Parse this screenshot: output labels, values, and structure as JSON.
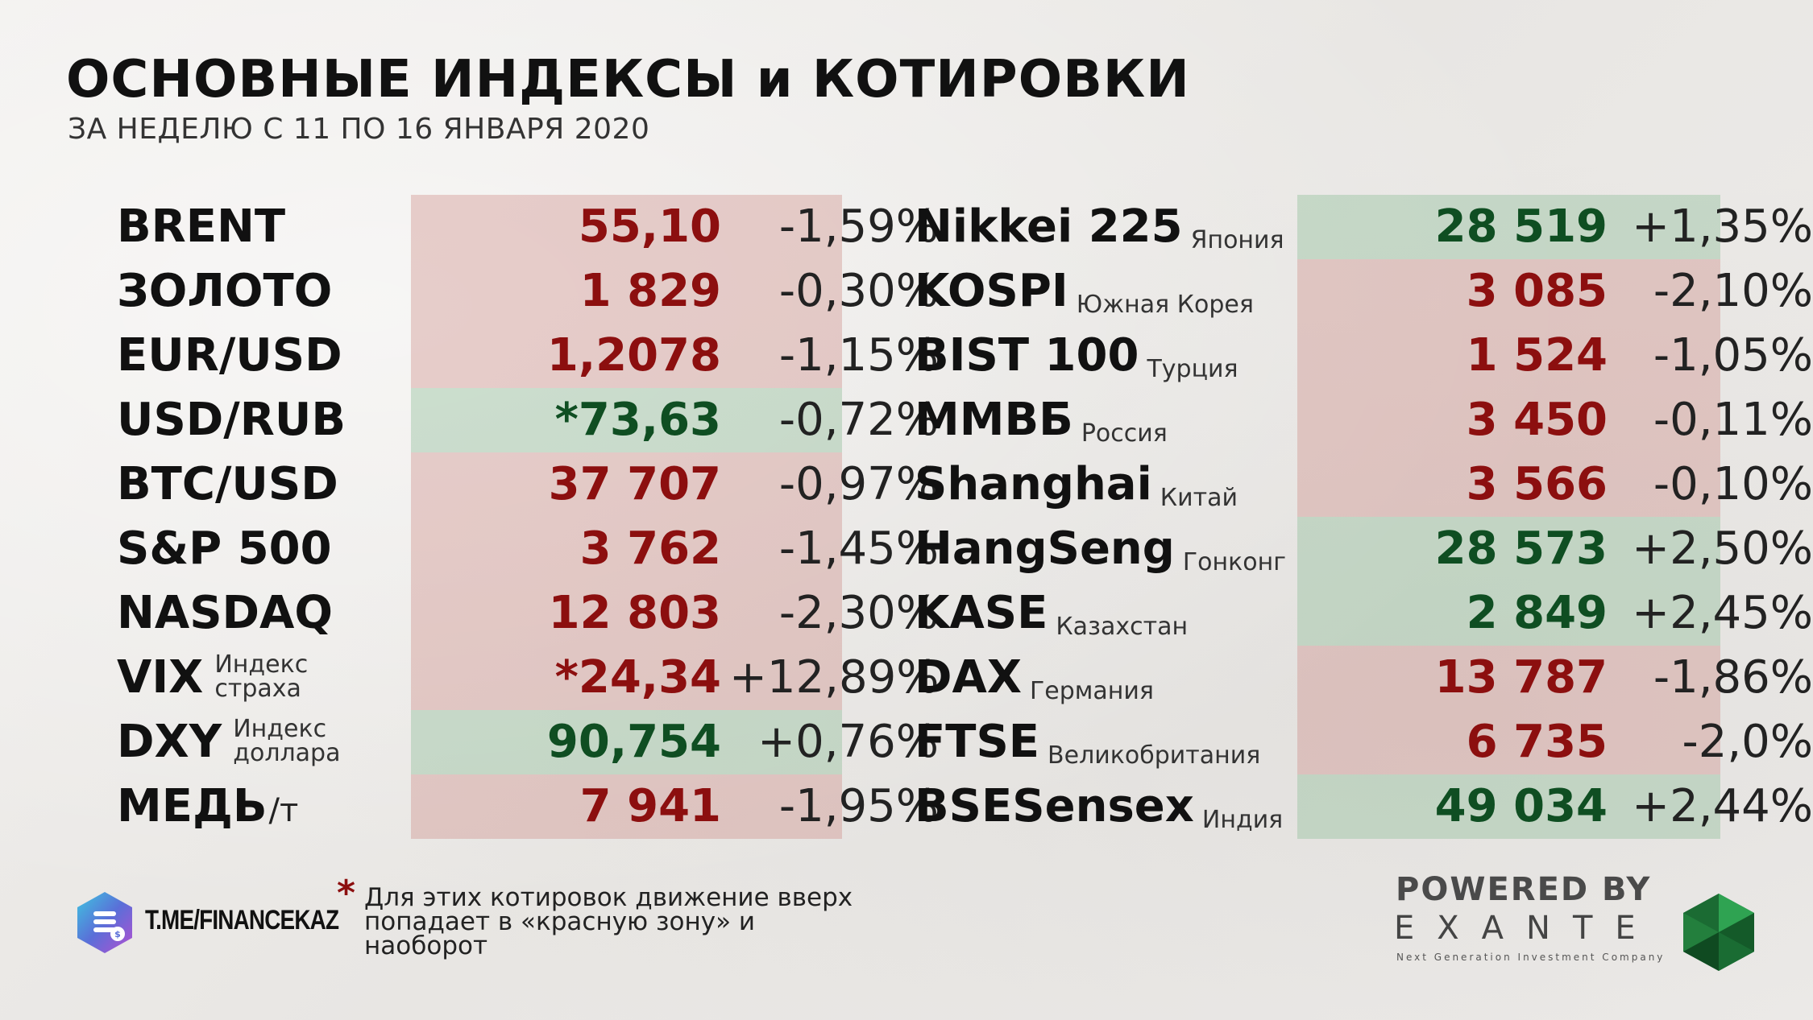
{
  "header": {
    "title": "ОСНОВНЫЕ ИНДЕКСЫ и КОТИРОВКИ",
    "subtitle": "ЗА НЕДЕЛЮ С 11 ПО 16 ЯНВАРЯ 2020"
  },
  "left_rows": [
    {
      "name": "BRENT",
      "value": "55,10",
      "change": "-1,59%",
      "zone": "red"
    },
    {
      "name": "ЗОЛОТО",
      "value": "1 829",
      "change": "-0,30%",
      "zone": "red"
    },
    {
      "name": "EUR/USD",
      "value": "1,2078",
      "change": "-1,15%",
      "zone": "red"
    },
    {
      "name": "USD/RUB",
      "value": "*73,63",
      "change": "-0,72%",
      "zone": "green"
    },
    {
      "name": "BTC/USD",
      "value": "37 707",
      "change": "-0,97%",
      "zone": "red"
    },
    {
      "name": "S&P 500",
      "value": "3 762",
      "change": "-1,45%",
      "zone": "red"
    },
    {
      "name": "NASDAQ",
      "value": "12 803",
      "change": "-2,30%",
      "zone": "red"
    },
    {
      "name": "VIX",
      "note": "Индекс страха",
      "value": "*24,34",
      "change": "+12,89%",
      "zone": "red"
    },
    {
      "name": "DXY",
      "note": "Индекс доллара",
      "value": "90,754",
      "change": "+0,76%",
      "zone": "green"
    },
    {
      "name": "МЕДЬ",
      "unit": "/т",
      "value": "7 941",
      "change": "-1,95%",
      "zone": "red"
    }
  ],
  "right_rows": [
    {
      "name": "Nikkei 225",
      "country": "Япония",
      "value": "28 519",
      "change": "+1,35%",
      "zone": "green"
    },
    {
      "name": "KOSPI",
      "country": "Южная Корея",
      "value": "3 085",
      "change": "-2,10%",
      "zone": "red"
    },
    {
      "name": "BIST 100",
      "country": "Турция",
      "value": "1 524",
      "change": "-1,05%",
      "zone": "red"
    },
    {
      "name": "ММВБ",
      "country": "Россия",
      "value": "3 450",
      "change": "-0,11%",
      "zone": "red"
    },
    {
      "name": "Shanghai",
      "country": "Китай",
      "value": "3 566",
      "change": "-0,10%",
      "zone": "red"
    },
    {
      "name": "HangSeng",
      "country": "Гонконг",
      "value": "28 573",
      "change": "+2,50%",
      "zone": "green"
    },
    {
      "name": "KASE",
      "country": "Казахстан",
      "value": "2 849",
      "change": "+2,45%",
      "zone": "green"
    },
    {
      "name": "DAX",
      "country": "Германия",
      "value": "13 787",
      "change": "-1,86%",
      "zone": "red"
    },
    {
      "name": "FTSE",
      "country": "Великобритания",
      "value": "6 735",
      "change": "-2,0%",
      "zone": "red"
    },
    {
      "name": "BSESensex",
      "country": "Индия",
      "value": "49 034",
      "change": "+2,44%",
      "zone": "green"
    }
  ],
  "footer": {
    "telegram_label": "T.ME/FINANCEKAZ",
    "footnote_star": "*",
    "footnote_text": "Для этих котировок движение вверх попадает в «красную зону» и наоборот",
    "powered_by": "POWERED BY",
    "brand": "EXANTE",
    "brand_tagline": "Next Generation Investment Company"
  },
  "colors": {
    "red_zone": "#cd8c87",
    "green_zone": "#91be9b",
    "red_text": "#8c0f0f",
    "green_text": "#0f4e22"
  }
}
